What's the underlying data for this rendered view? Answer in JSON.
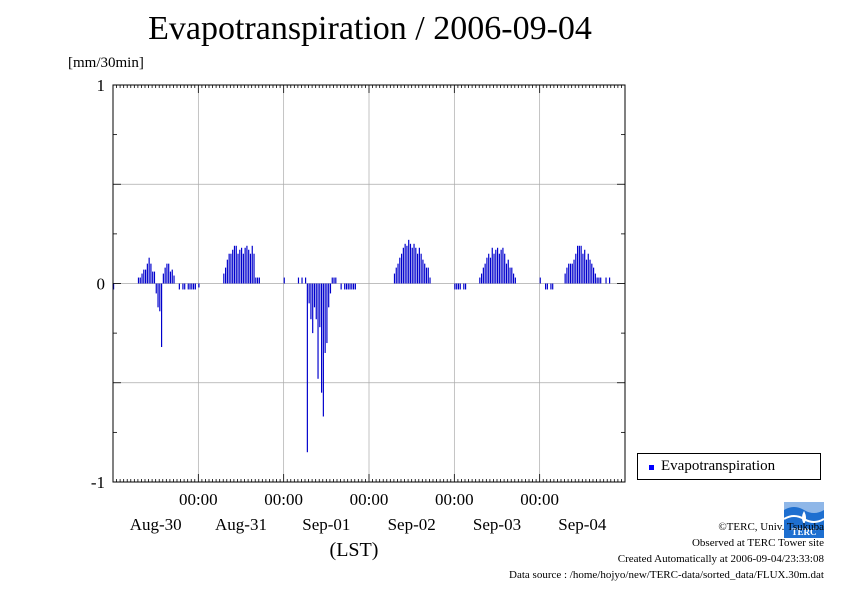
{
  "title": "Evapotranspiration / 2006-09-04",
  "unit_label": "[mm/30min]",
  "x_axis_label": "(LST)",
  "legend_label": "Evapotranspiration",
  "credits": {
    "line1": "©TERC, Univ. Tsukuba",
    "line2": "Observed at TERC Tower site",
    "line3": "Created Automatically at 2006-09-04/23:33:08",
    "line4": "Data source : /home/hojyo/new/TERC-data/sorted_data/FLUX.30m.dat"
  },
  "logo_text": "TERC",
  "colors": {
    "bar": "#0000cc",
    "legend_marker": "#0000ff",
    "grid": "#aaaaaa",
    "logo": "#1e6fd0"
  },
  "chart_data": {
    "type": "bar",
    "series": [
      {
        "name": "Evapotranspiration",
        "color": "#0000cc"
      }
    ],
    "ylim": [
      -1,
      1
    ],
    "yticks": [
      -1,
      0,
      1
    ],
    "ytick_labels": [
      "-1",
      "0",
      "1"
    ],
    "xlim_days": [
      -1.0,
      5.0
    ],
    "xtick_time_label": "00:00",
    "date_labels": [
      "Aug-30",
      "Aug-31",
      "Sep-01",
      "Sep-02",
      "Sep-03",
      "Sep-04"
    ],
    "grid": true,
    "legend_position": "right",
    "daily_profiles": [
      {
        "night": [
          -0.03,
          0,
          0,
          0,
          0,
          0,
          0,
          0,
          0,
          0,
          0,
          0,
          0,
          0
        ],
        "day": [
          0.03,
          0.03,
          0.05,
          0.07,
          0.07,
          0.1,
          0.13,
          0.1,
          0.06,
          0.06,
          -0.05,
          -0.12,
          -0.14,
          -0.32,
          0.05,
          0.08,
          0.1,
          0.1,
          0.06,
          0.07,
          0.04
        ],
        "evening": [
          0,
          0,
          -0.03,
          0,
          -0.03,
          -0.03,
          0,
          -0.03,
          -0.03,
          -0.03,
          -0.03,
          -0.03,
          0
        ]
      },
      {
        "night": [
          -0.02,
          0,
          0,
          0,
          0,
          0,
          0,
          0,
          0,
          0,
          0,
          0,
          0,
          0
        ],
        "day": [
          0.05,
          0.08,
          0.12,
          0.15,
          0.15,
          0.17,
          0.19,
          0.19,
          0.15,
          0.17,
          0.18,
          0.15,
          0.18,
          0.19,
          0.17,
          0.15,
          0.19,
          0.15,
          0.03,
          0.03,
          0.03
        ],
        "evening": [
          0,
          0,
          0,
          0,
          0,
          0,
          0,
          0,
          0,
          0,
          0,
          0,
          0
        ]
      },
      {
        "night": [
          0.03,
          0,
          0,
          0,
          0,
          0,
          0,
          0,
          0.03,
          0,
          0.03,
          0,
          0.03,
          -0.85
        ],
        "day": [
          -0.1,
          -0.18,
          -0.25,
          -0.12,
          -0.18,
          -0.48,
          -0.22,
          -0.55,
          -0.67,
          -0.35,
          -0.3,
          -0.12,
          -0.05,
          0.03,
          0.03,
          0.03,
          0,
          0,
          -0.03,
          0,
          -0.03
        ],
        "evening": [
          -0.03,
          -0.03,
          -0.03,
          -0.03,
          -0.03,
          -0.03,
          0,
          0,
          0,
          0,
          0,
          0,
          0
        ]
      },
      {
        "night": [
          0,
          0,
          0,
          0,
          0,
          0,
          0,
          0,
          0,
          0,
          0,
          0,
          0,
          0
        ],
        "day": [
          0.05,
          0.08,
          0.1,
          0.13,
          0.15,
          0.18,
          0.2,
          0.19,
          0.22,
          0.2,
          0.18,
          0.2,
          0.18,
          0.15,
          0.18,
          0.15,
          0.12,
          0.1,
          0.08,
          0.08,
          0.03
        ],
        "evening": [
          0,
          0,
          0,
          0,
          0,
          0,
          0,
          0,
          0,
          0,
          0,
          0,
          0
        ]
      },
      {
        "night": [
          -0.03,
          -0.03,
          -0.03,
          -0.03,
          0,
          -0.03,
          -0.03,
          0,
          0,
          0,
          0,
          0,
          0,
          0
        ],
        "day": [
          0.03,
          0.05,
          0.08,
          0.1,
          0.13,
          0.15,
          0.13,
          0.18,
          0.15,
          0.17,
          0.18,
          0.15,
          0.17,
          0.18,
          0.15,
          0.1,
          0.12,
          0.08,
          0.08,
          0.05,
          0.03
        ],
        "evening": [
          0,
          0,
          0,
          0,
          0,
          0,
          0,
          0,
          0,
          0,
          0,
          0,
          0
        ]
      },
      {
        "night": [
          0.03,
          0,
          0,
          -0.03,
          -0.03,
          0,
          -0.03,
          -0.03,
          0,
          0,
          0,
          0,
          0,
          0
        ],
        "day": [
          0.05,
          0.08,
          0.1,
          0.1,
          0.1,
          0.12,
          0.15,
          0.19,
          0.19,
          0.19,
          0.15,
          0.17,
          0.12,
          0.15,
          0.12,
          0.1,
          0.08,
          0.05,
          0.03,
          0.03,
          0.03
        ],
        "evening": [
          0,
          0,
          0.03,
          0,
          0.03,
          0,
          0,
          0,
          0,
          0,
          0,
          0,
          0
        ]
      }
    ]
  }
}
